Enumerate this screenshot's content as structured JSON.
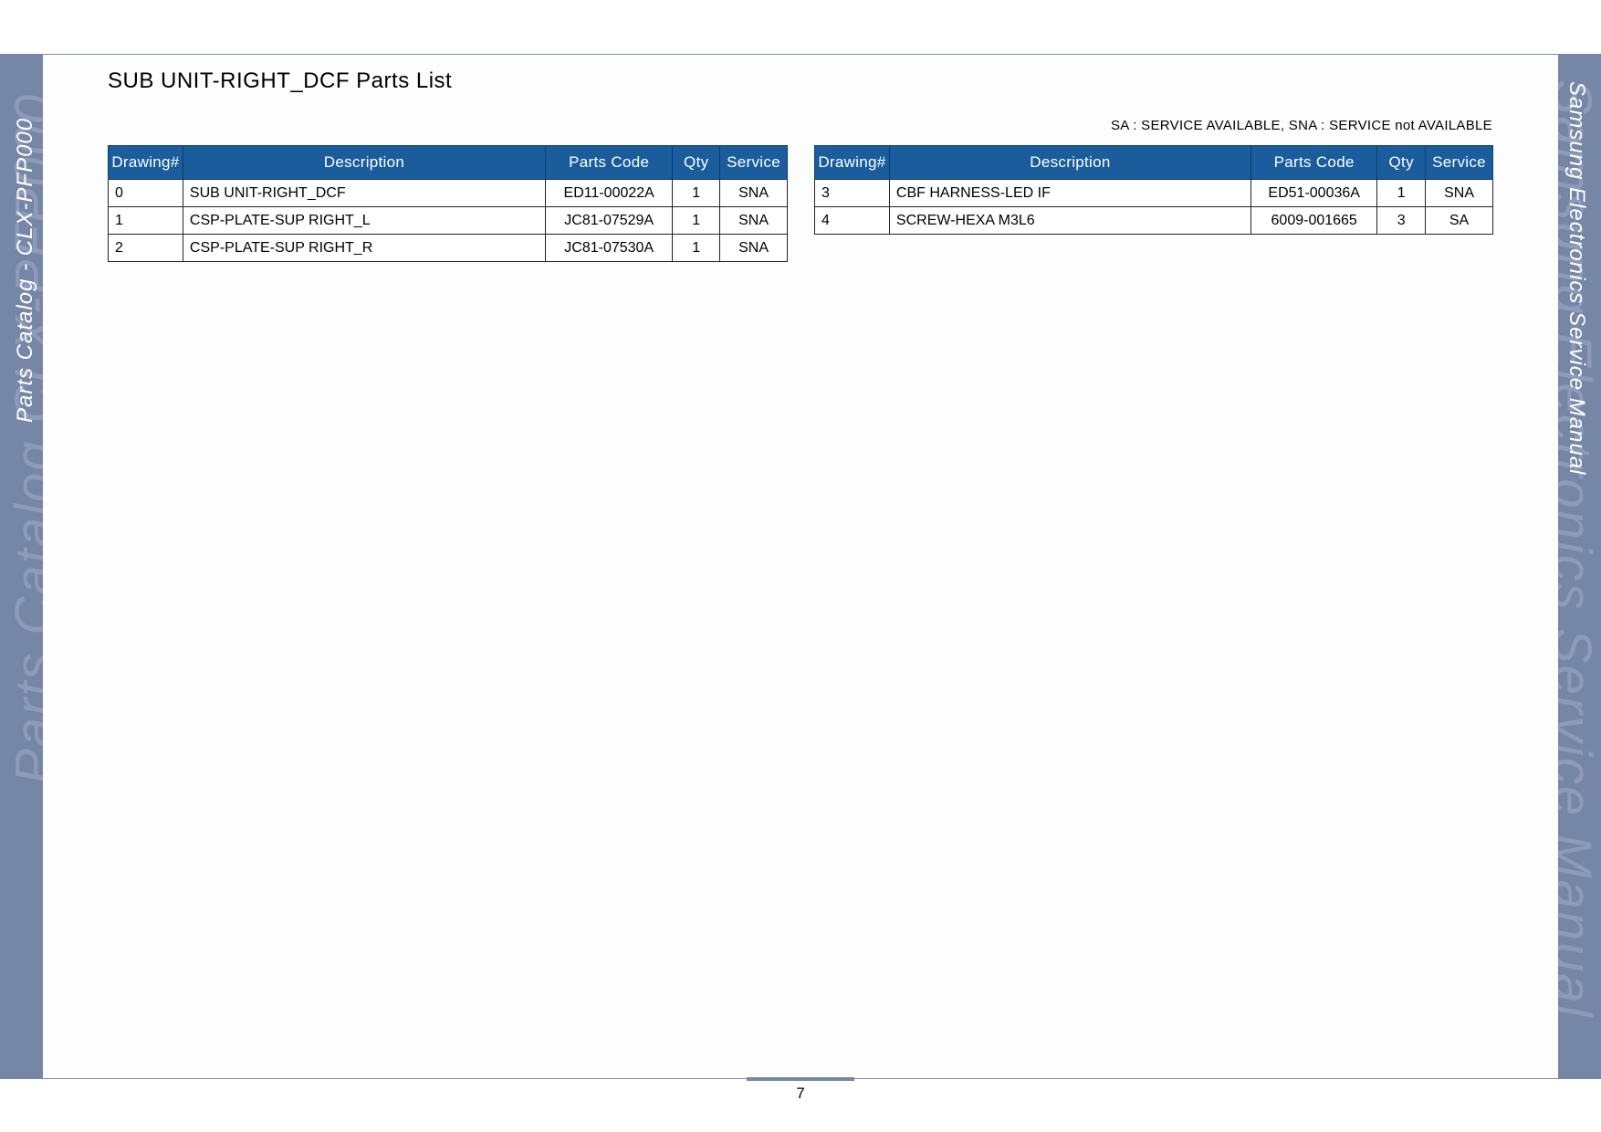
{
  "page": {
    "title": "SUB UNIT-RIGHT_DCF Parts List",
    "legend": "SA : SERVICE AVAILABLE, SNA : SERVICE not AVAILABLE",
    "page_number": "7"
  },
  "sidebar_left": {
    "big_text": "Parts Catalog  CLX-PFP000",
    "small_text": "Parts Catalog - CLX-PFP000"
  },
  "sidebar_right": {
    "big_text": "Samsung Electronics  Service Manual",
    "small_text": "Samsung Electronics  Service Manual"
  },
  "table_headers": {
    "drawing": "Drawing#",
    "description": "Description",
    "parts_code": "Parts Code",
    "qty": "Qty",
    "service": "Service"
  },
  "table_left": {
    "rows": [
      {
        "drawing": "0",
        "description": "SUB UNIT-RIGHT_DCF",
        "parts_code": "ED11-00022A",
        "qty": "1",
        "service": "SNA"
      },
      {
        "drawing": "1",
        "description": "CSP-PLATE-SUP RIGHT_L",
        "parts_code": "JC81-07529A",
        "qty": "1",
        "service": "SNA"
      },
      {
        "drawing": "2",
        "description": "CSP-PLATE-SUP RIGHT_R",
        "parts_code": "JC81-07530A",
        "qty": "1",
        "service": "SNA"
      }
    ]
  },
  "table_right": {
    "rows": [
      {
        "drawing": "3",
        "description": "CBF HARNESS-LED IF",
        "parts_code": "ED51-00036A",
        "qty": "1",
        "service": "SNA"
      },
      {
        "drawing": "4",
        "description": "SCREW-HEXA M3L6",
        "parts_code": "6009-001665",
        "qty": "3",
        "service": "SA"
      }
    ]
  },
  "colors": {
    "header_blue": "#1a5c9c",
    "sidebar": "#7686a6"
  }
}
